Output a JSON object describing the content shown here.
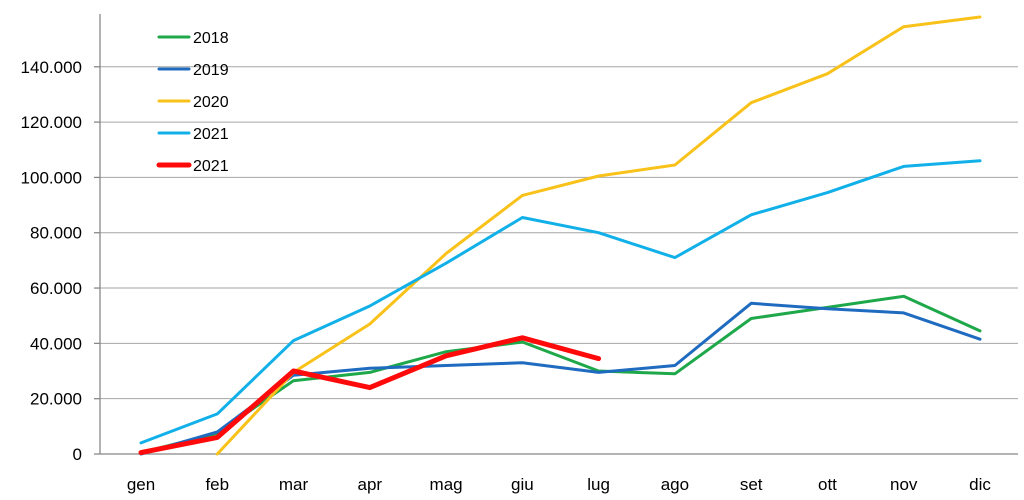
{
  "chart_data": {
    "type": "line",
    "title": "",
    "xlabel": "",
    "ylabel": "",
    "categories": [
      "gen",
      "feb",
      "mar",
      "apr",
      "mag",
      "giu",
      "lug",
      "ago",
      "set",
      "ott",
      "nov",
      "dic"
    ],
    "ylim": [
      0,
      150000
    ],
    "yticks": [
      0,
      20000,
      40000,
      60000,
      80000,
      100000,
      120000,
      140000
    ],
    "ytick_labels": [
      "0",
      "20.000",
      "40.000",
      "60.000",
      "80.000",
      "100.000",
      "120.000",
      "140.000"
    ],
    "grid": "horizontal",
    "legend_position": "top-left",
    "series": [
      {
        "name": "2018",
        "color": "#1ea84a",
        "thick": false,
        "values": [
          500,
          7500,
          26500,
          29500,
          37000,
          40500,
          30000,
          29000,
          49000,
          53000,
          57000,
          44500
        ]
      },
      {
        "name": "2019",
        "color": "#1f6bbf",
        "thick": false,
        "values": [
          0,
          8000,
          28500,
          31000,
          32000,
          33000,
          29500,
          32000,
          54500,
          52500,
          51000,
          41500
        ]
      },
      {
        "name": "2020",
        "color": "#f9c21a",
        "thick": false,
        "values": [
          null,
          0,
          29500,
          47000,
          72500,
          93500,
          100500,
          104500,
          127000,
          137500,
          154500,
          158000
        ]
      },
      {
        "name": "2021",
        "color": "#12b0e8",
        "thick": false,
        "values": [
          4000,
          14500,
          41000,
          53500,
          69000,
          85500,
          80000,
          71000,
          86500,
          94500,
          104000,
          106000
        ]
      },
      {
        "name": "2021",
        "color": "#ff0a0a",
        "thick": true,
        "values": [
          500,
          6000,
          30000,
          24000,
          35500,
          42000,
          34500,
          null,
          null,
          null,
          null,
          null
        ]
      }
    ]
  }
}
